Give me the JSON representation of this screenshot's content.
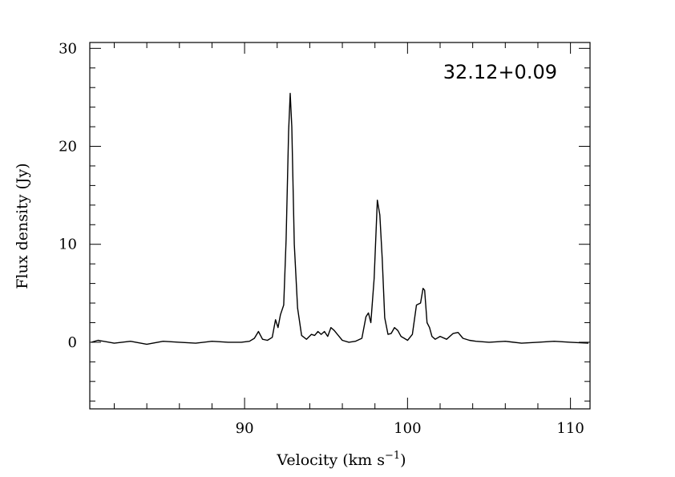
{
  "chart_data": {
    "type": "line",
    "title": "32.12+0.09",
    "xlabel": "Velocity (km s",
    "xlabel_superscript": "−1",
    "xlabel_close": ")",
    "ylabel": "Flux density (Jy)",
    "xlim": [
      80.5,
      111.2
    ],
    "ylim": [
      -6.8,
      30.6
    ],
    "x_ticks": [
      {
        "value": 90,
        "label": "90"
      },
      {
        "value": 100,
        "label": "100"
      },
      {
        "value": 110,
        "label": "110"
      }
    ],
    "y_ticks": [
      {
        "value": 0,
        "label": "0"
      },
      {
        "value": 10,
        "label": "10"
      },
      {
        "value": 20,
        "label": "20"
      },
      {
        "value": 30,
        "label": "30"
      }
    ],
    "x_minor_step": 2,
    "y_minor_step": 2,
    "grid": false,
    "series": [
      {
        "color": "#000000",
        "x": [
          80.6,
          81.0,
          82.0,
          83.0,
          84.0,
          85.0,
          86.0,
          87.0,
          88.0,
          89.0,
          89.8,
          90.3,
          90.6,
          90.85,
          91.1,
          91.4,
          91.7,
          91.9,
          92.05,
          92.2,
          92.4,
          92.55,
          92.7,
          92.8,
          92.9,
          93.05,
          93.25,
          93.5,
          93.8,
          94.1,
          94.3,
          94.5,
          94.7,
          94.9,
          95.1,
          95.3,
          95.5,
          95.75,
          96.0,
          96.4,
          96.8,
          97.2,
          97.45,
          97.6,
          97.75,
          97.95,
          98.15,
          98.3,
          98.45,
          98.6,
          98.8,
          99.0,
          99.2,
          99.4,
          99.6,
          99.8,
          100.0,
          100.3,
          100.55,
          100.8,
          100.95,
          101.05,
          101.2,
          101.35,
          101.5,
          101.7,
          102.0,
          102.4,
          102.8,
          103.1,
          103.4,
          103.8,
          104.2,
          105.0,
          106.0,
          107.0,
          108.0,
          109.0,
          110.0,
          111.1
        ],
        "y": [
          0.0,
          0.2,
          -0.1,
          0.1,
          -0.2,
          0.1,
          0.0,
          -0.1,
          0.1,
          0.0,
          0.0,
          0.1,
          0.4,
          1.1,
          0.3,
          0.2,
          0.5,
          2.3,
          1.5,
          2.8,
          3.8,
          10.5,
          21.5,
          25.4,
          22.0,
          10.0,
          3.5,
          0.7,
          0.3,
          0.8,
          0.7,
          1.1,
          0.8,
          1.1,
          0.6,
          1.5,
          1.2,
          0.7,
          0.2,
          0.0,
          0.1,
          0.4,
          2.6,
          3.0,
          2.0,
          6.5,
          14.5,
          13.0,
          8.5,
          2.5,
          0.8,
          0.9,
          1.5,
          1.2,
          0.6,
          0.4,
          0.2,
          0.8,
          3.8,
          4.0,
          5.5,
          5.3,
          2.0,
          1.5,
          0.6,
          0.3,
          0.6,
          0.3,
          0.9,
          1.0,
          0.4,
          0.2,
          0.1,
          0.0,
          0.1,
          -0.1,
          0.0,
          0.1,
          0.0,
          -0.1
        ]
      }
    ]
  }
}
